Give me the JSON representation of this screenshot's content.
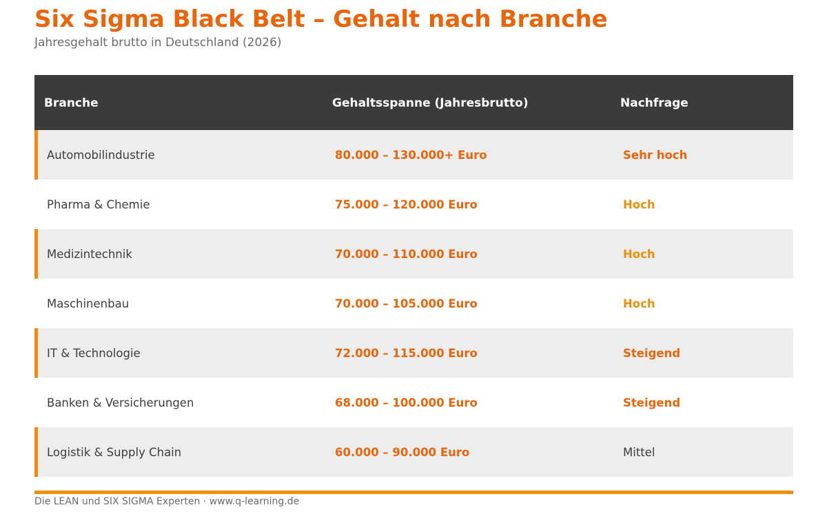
{
  "header": {
    "title": "Six Sigma Black Belt – Gehalt nach Branche",
    "subtitle": "Jahresgehalt brutto in Deutschland (2026)"
  },
  "table": {
    "columns": [
      "Branche",
      "Gehaltsspanne (Jahresbrutto)",
      "Nachfrage"
    ],
    "rows": [
      {
        "branche": "Automobilindustrie",
        "gehalt": "80.000 – 130.000+ Euro",
        "nachfrage": "Sehr hoch",
        "level": "sehr-hoch"
      },
      {
        "branche": "Pharma & Chemie",
        "gehalt": "75.000 – 120.000 Euro",
        "nachfrage": "Hoch",
        "level": "hoch"
      },
      {
        "branche": "Medizintechnik",
        "gehalt": "70.000 – 110.000 Euro",
        "nachfrage": "Hoch",
        "level": "hoch"
      },
      {
        "branche": "Maschinenbau",
        "gehalt": "70.000 – 105.000 Euro",
        "nachfrage": "Hoch",
        "level": "hoch"
      },
      {
        "branche": "IT & Technologie",
        "gehalt": "72.000 – 115.000 Euro",
        "nachfrage": "Steigend",
        "level": "steigend"
      },
      {
        "branche": "Banken & Versicherungen",
        "gehalt": "68.000 – 100.000 Euro",
        "nachfrage": "Steigend",
        "level": "steigend"
      },
      {
        "branche": "Logistik & Supply Chain",
        "gehalt": "60.000 – 90.000 Euro",
        "nachfrage": "Mittel",
        "level": "mittel"
      }
    ]
  },
  "footer": {
    "text": "Die LEAN und SIX SIGMA Experten · www.q-learning.de"
  },
  "colors": {
    "accent": "#E8650C",
    "accent_light": "#EE8E0C",
    "header_bg": "#3C3B39",
    "row_shade": "#EDEDED"
  }
}
